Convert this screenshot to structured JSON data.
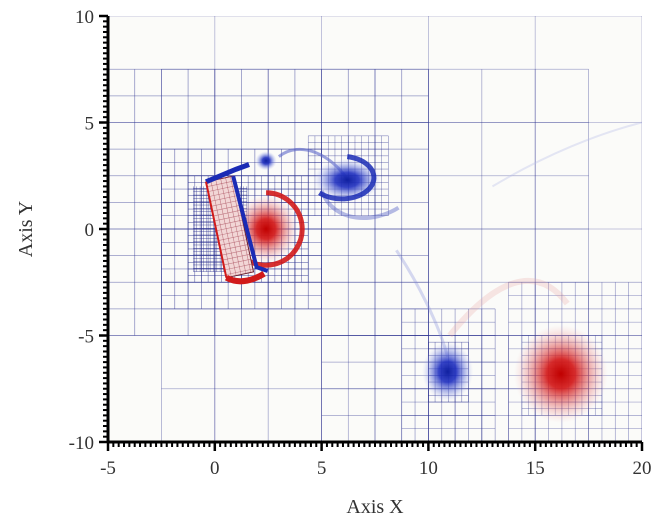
{
  "chart_data": {
    "type": "scatter",
    "title": "",
    "xlabel": "Axis X",
    "ylabel": "Axis Y",
    "xlim": [
      -5,
      20
    ],
    "ylim": [
      -10,
      10
    ],
    "xticks": [
      -5,
      0,
      5,
      10,
      15,
      20
    ],
    "yticks": [
      -10,
      -5,
      0,
      5,
      10
    ],
    "grid": "adaptive-mesh",
    "body": {
      "kind": "rotated-plate",
      "center": [
        0.7,
        0.1
      ],
      "length": 4.6,
      "width": 1.3,
      "angle_deg": 12
    },
    "vortices": [
      {
        "name": "",
        "x": 2.4,
        "y": 0.0,
        "rx": 1.5,
        "ry": 1.6,
        "sign": "positive",
        "color": "#d11a1a"
      },
      {
        "name": "",
        "x": 6.2,
        "y": 2.3,
        "rx": 1.6,
        "ry": 1.0,
        "sign": "negative",
        "color": "#1a2bb5"
      },
      {
        "name": "",
        "x": 2.4,
        "y": 3.2,
        "rx": 0.5,
        "ry": 0.45,
        "sign": "negative",
        "color": "#1a2bb5"
      },
      {
        "name": "",
        "x": 10.9,
        "y": -6.7,
        "rx": 1.2,
        "ry": 1.4,
        "sign": "negative",
        "color": "#1a2bb5"
      },
      {
        "name": "",
        "x": 16.2,
        "y": -6.8,
        "rx": 2.2,
        "ry": 2.3,
        "sign": "positive",
        "color": "#d11a1a"
      }
    ],
    "colors": {
      "positive": "#d11a1a",
      "negative": "#1a2bb5",
      "mesh": "#2a2f8f",
      "axis": "#000000"
    }
  }
}
